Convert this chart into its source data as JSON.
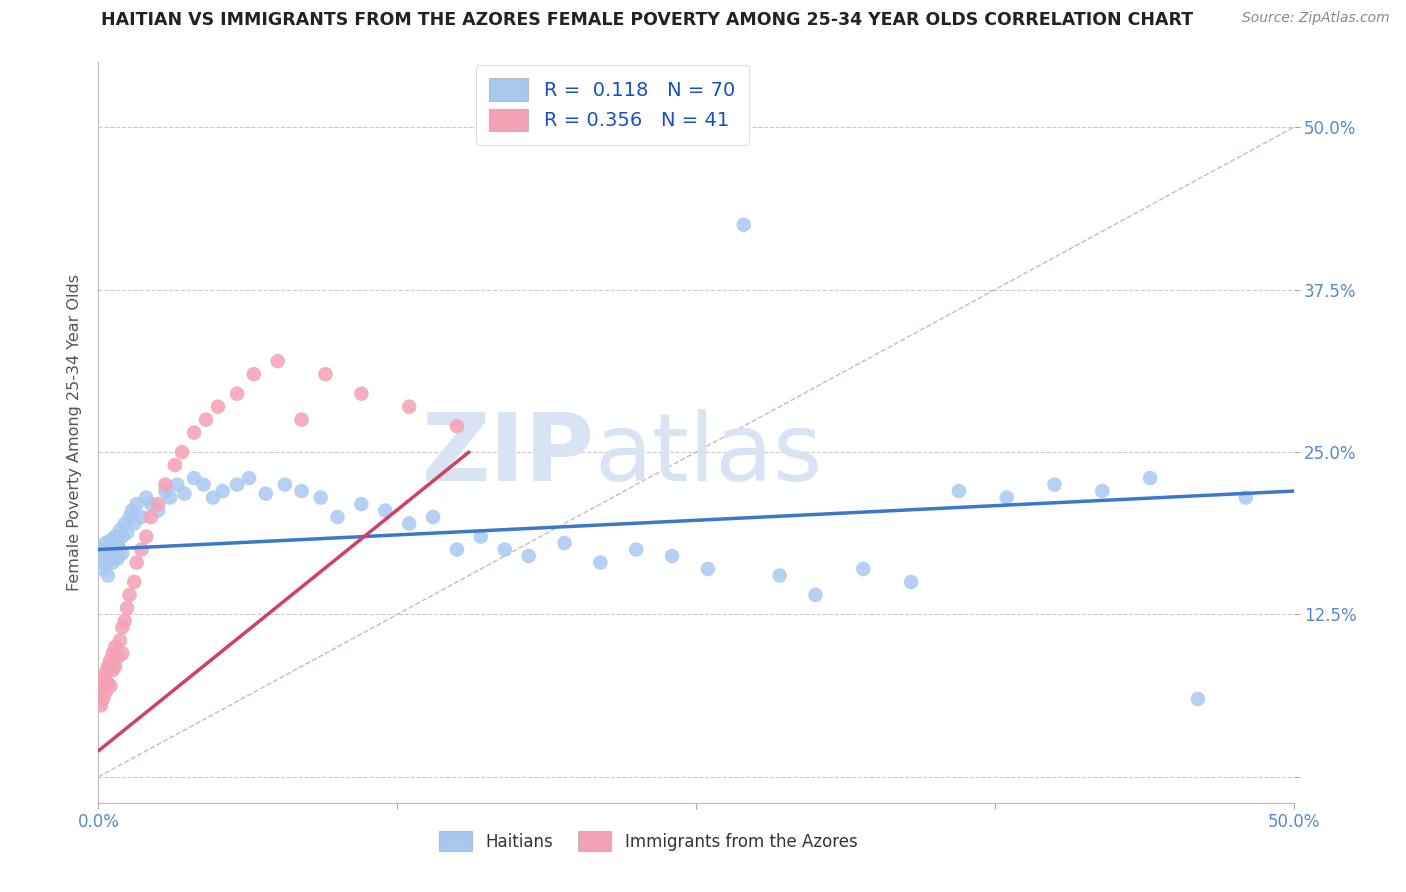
{
  "title": "HAITIAN VS IMMIGRANTS FROM THE AZORES FEMALE POVERTY AMONG 25-34 YEAR OLDS CORRELATION CHART",
  "source": "Source: ZipAtlas.com",
  "ylabel": "Female Poverty Among 25-34 Year Olds",
  "xlim": [
    0.0,
    0.5
  ],
  "ylim": [
    -0.02,
    0.55
  ],
  "haitian_R": 0.118,
  "haitian_N": 70,
  "azores_R": 0.356,
  "azores_N": 41,
  "haitian_color": "#a8c8f0",
  "azores_color": "#f4a0b5",
  "haitian_line_color": "#3a78c9",
  "azores_line_color": "#d04060",
  "ref_line_color": "#d0b8b8",
  "background_color": "#ffffff",
  "watermark_color": "#d8e4f4",
  "haitian_x": [
    0.001,
    0.002,
    0.002,
    0.003,
    0.003,
    0.004,
    0.004,
    0.005,
    0.005,
    0.005,
    0.006,
    0.006,
    0.007,
    0.007,
    0.008,
    0.008,
    0.009,
    0.009,
    0.01,
    0.01,
    0.011,
    0.012,
    0.013,
    0.014,
    0.015,
    0.016,
    0.018,
    0.02,
    0.022,
    0.025,
    0.028,
    0.03,
    0.033,
    0.036,
    0.04,
    0.044,
    0.048,
    0.052,
    0.058,
    0.063,
    0.07,
    0.078,
    0.085,
    0.093,
    0.1,
    0.11,
    0.12,
    0.13,
    0.14,
    0.15,
    0.16,
    0.17,
    0.18,
    0.195,
    0.21,
    0.225,
    0.24,
    0.255,
    0.27,
    0.285,
    0.3,
    0.32,
    0.34,
    0.36,
    0.38,
    0.4,
    0.42,
    0.44,
    0.46,
    0.48
  ],
  "haitian_y": [
    0.175,
    0.17,
    0.16,
    0.18,
    0.165,
    0.172,
    0.155,
    0.178,
    0.168,
    0.182,
    0.165,
    0.175,
    0.17,
    0.185,
    0.168,
    0.18,
    0.175,
    0.19,
    0.172,
    0.185,
    0.195,
    0.188,
    0.2,
    0.205,
    0.195,
    0.21,
    0.2,
    0.215,
    0.21,
    0.205,
    0.22,
    0.215,
    0.225,
    0.218,
    0.23,
    0.225,
    0.215,
    0.22,
    0.225,
    0.23,
    0.218,
    0.225,
    0.22,
    0.215,
    0.2,
    0.21,
    0.205,
    0.195,
    0.2,
    0.175,
    0.185,
    0.175,
    0.17,
    0.18,
    0.165,
    0.175,
    0.17,
    0.16,
    0.425,
    0.155,
    0.14,
    0.16,
    0.15,
    0.22,
    0.215,
    0.225,
    0.22,
    0.23,
    0.06,
    0.215
  ],
  "azores_x": [
    0.001,
    0.001,
    0.002,
    0.002,
    0.003,
    0.003,
    0.004,
    0.004,
    0.005,
    0.005,
    0.006,
    0.006,
    0.007,
    0.007,
    0.008,
    0.009,
    0.01,
    0.01,
    0.011,
    0.012,
    0.013,
    0.015,
    0.016,
    0.018,
    0.02,
    0.022,
    0.025,
    0.028,
    0.032,
    0.035,
    0.04,
    0.045,
    0.05,
    0.058,
    0.065,
    0.075,
    0.085,
    0.095,
    0.11,
    0.13,
    0.15
  ],
  "azores_y": [
    0.055,
    0.07,
    0.06,
    0.075,
    0.065,
    0.08,
    0.072,
    0.085,
    0.07,
    0.09,
    0.082,
    0.095,
    0.085,
    0.1,
    0.092,
    0.105,
    0.095,
    0.115,
    0.12,
    0.13,
    0.14,
    0.15,
    0.165,
    0.175,
    0.185,
    0.2,
    0.21,
    0.225,
    0.24,
    0.25,
    0.265,
    0.275,
    0.285,
    0.295,
    0.31,
    0.32,
    0.275,
    0.31,
    0.295,
    0.285,
    0.27
  ]
}
